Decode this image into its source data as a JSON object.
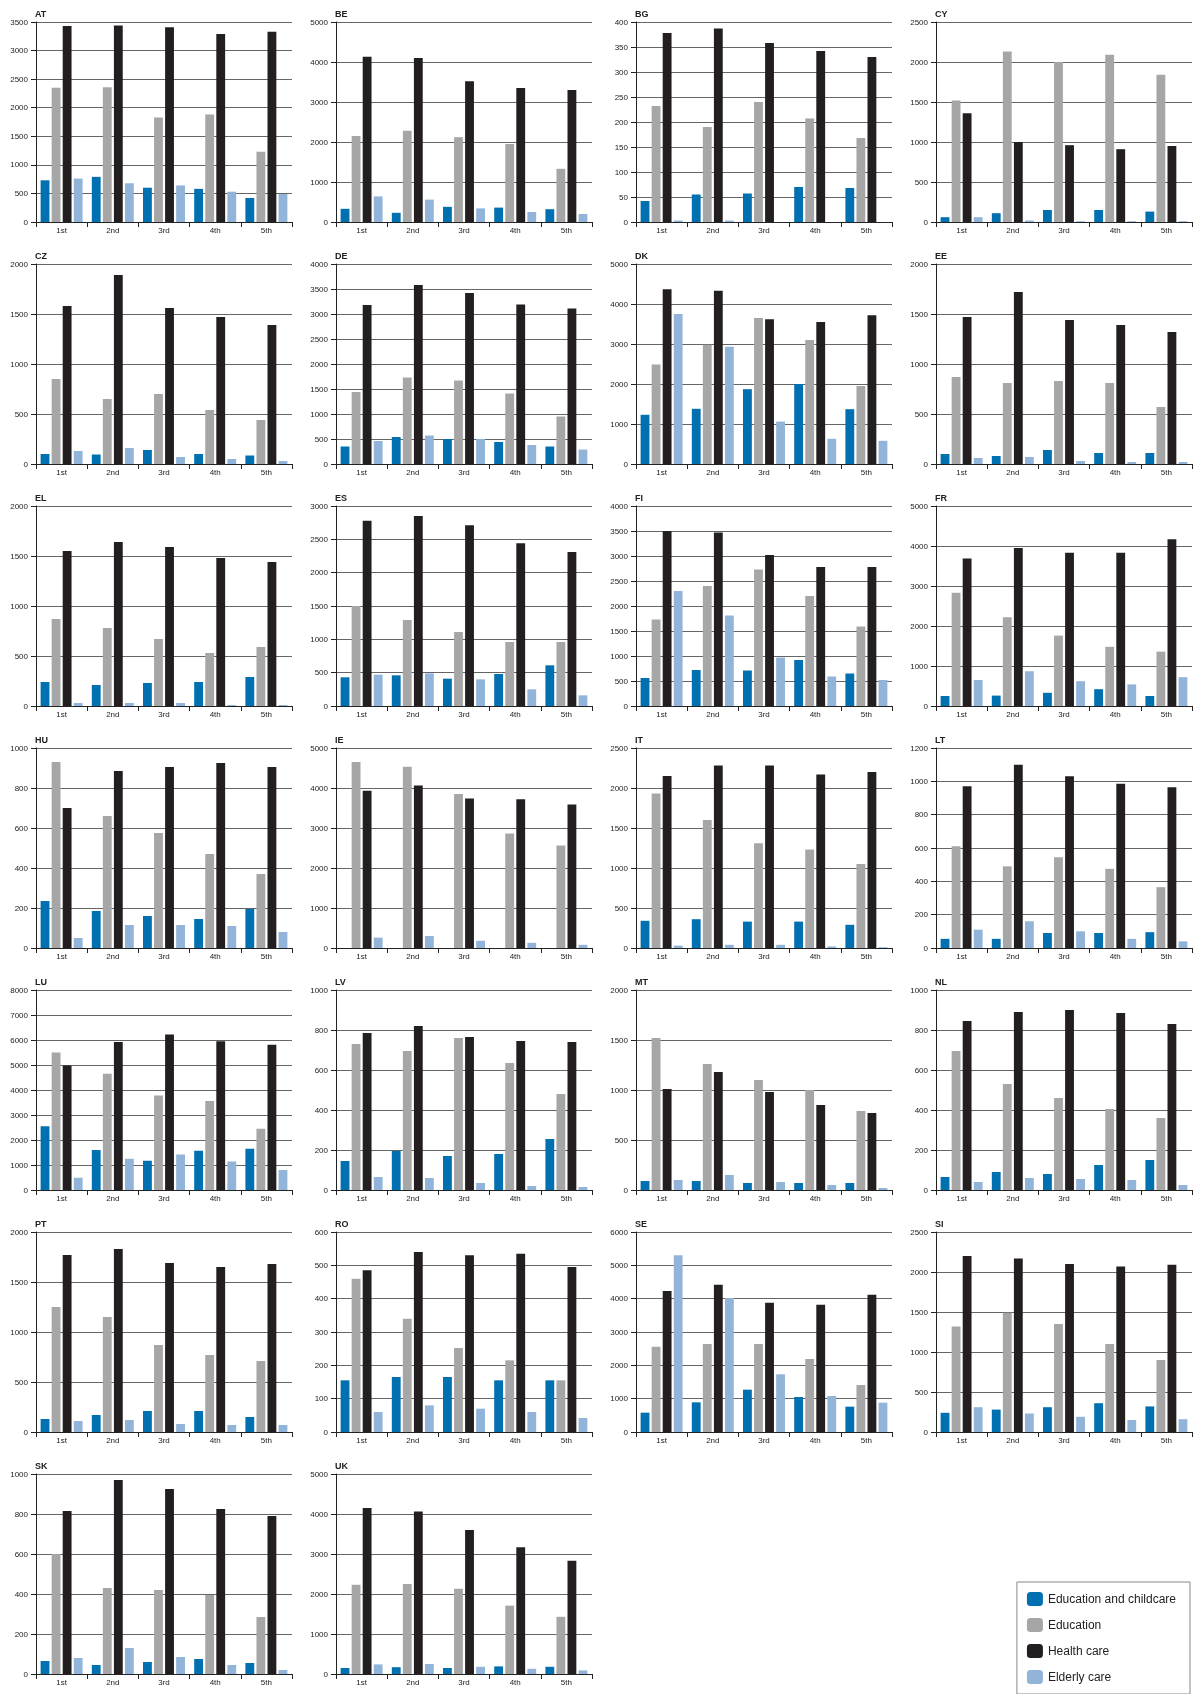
{
  "chart_data": [
    {
      "type": "bar",
      "title": "AT",
      "categories": [
        "1st",
        "2nd",
        "3rd",
        "4th",
        "5th"
      ],
      "ylim": [
        0,
        3500
      ],
      "yticks": [
        0,
        500,
        1000,
        1500,
        2000,
        2500,
        3000,
        3500
      ],
      "grid": "y",
      "series": [
        {
          "color": "#0070b0",
          "values": [
            730,
            790,
            600,
            580,
            420
          ]
        },
        {
          "color": "#a6a6a6",
          "values": [
            2350,
            2360,
            1830,
            1880,
            1230
          ]
        },
        {
          "color": "#231f20",
          "values": [
            3430,
            3440,
            3410,
            3290,
            3330
          ]
        },
        {
          "color": "#92b4d9",
          "values": [
            760,
            680,
            640,
            530,
            490
          ]
        }
      ]
    },
    {
      "type": "bar",
      "title": "BE",
      "categories": [
        "1st",
        "2nd",
        "3rd",
        "4th",
        "5th"
      ],
      "ylim": [
        0,
        5000
      ],
      "yticks": [
        0,
        1000,
        2000,
        3000,
        4000,
        5000
      ],
      "grid": "y",
      "series": [
        {
          "color": "#0070b0",
          "values": [
            330,
            230,
            380,
            360,
            320
          ]
        },
        {
          "color": "#a6a6a6",
          "values": [
            2150,
            2280,
            2120,
            1950,
            1330
          ]
        },
        {
          "color": "#231f20",
          "values": [
            4130,
            4100,
            3520,
            3350,
            3300
          ]
        },
        {
          "color": "#92b4d9",
          "values": [
            640,
            560,
            340,
            250,
            200
          ]
        }
      ]
    },
    {
      "type": "bar",
      "title": "BG",
      "categories": [
        "1st",
        "2nd",
        "3rd",
        "4th",
        "5th"
      ],
      "ylim": [
        0,
        400
      ],
      "yticks": [
        0,
        50,
        100,
        150,
        200,
        250,
        300,
        350,
        400
      ],
      "grid": "y",
      "series": [
        {
          "color": "#0070b0",
          "values": [
            42,
            55,
            57,
            70,
            68
          ]
        },
        {
          "color": "#a6a6a6",
          "values": [
            232,
            190,
            240,
            207,
            168
          ]
        },
        {
          "color": "#231f20",
          "values": [
            378,
            387,
            358,
            342,
            330
          ]
        },
        {
          "color": "#92b4d9",
          "values": [
            3,
            3,
            0,
            0,
            0
          ]
        }
      ]
    },
    {
      "type": "bar",
      "title": "CY",
      "categories": [
        "1st",
        "2nd",
        "3rd",
        "4th",
        "5th"
      ],
      "ylim": [
        0,
        2500
      ],
      "yticks": [
        0,
        500,
        1000,
        1500,
        2000,
        2500
      ],
      "grid": "y",
      "series": [
        {
          "color": "#0070b0",
          "values": [
            60,
            110,
            150,
            150,
            130
          ]
        },
        {
          "color": "#a6a6a6",
          "values": [
            1520,
            2130,
            2000,
            2090,
            1840
          ]
        },
        {
          "color": "#231f20",
          "values": [
            1360,
            1000,
            960,
            910,
            950
          ]
        },
        {
          "color": "#92b4d9",
          "values": [
            60,
            20,
            10,
            10,
            10
          ]
        }
      ]
    },
    {
      "type": "bar",
      "title": "CZ",
      "categories": [
        "1st",
        "2nd",
        "3rd",
        "4th",
        "5th"
      ],
      "ylim": [
        0,
        2000
      ],
      "yticks": [
        0,
        500,
        1000,
        1500,
        2000
      ],
      "grid": "y",
      "series": [
        {
          "color": "#0070b0",
          "values": [
            100,
            95,
            140,
            100,
            85
          ]
        },
        {
          "color": "#a6a6a6",
          "values": [
            850,
            650,
            700,
            540,
            440
          ]
        },
        {
          "color": "#231f20",
          "values": [
            1580,
            1890,
            1560,
            1470,
            1390
          ]
        },
        {
          "color": "#92b4d9",
          "values": [
            130,
            160,
            70,
            50,
            30
          ]
        }
      ]
    },
    {
      "type": "bar",
      "title": "DE",
      "categories": [
        "1st",
        "2nd",
        "3rd",
        "4th",
        "5th"
      ],
      "ylim": [
        0,
        4000
      ],
      "yticks": [
        0,
        500,
        1000,
        1500,
        2000,
        2500,
        3000,
        3500,
        4000
      ],
      "grid": "y",
      "series": [
        {
          "color": "#0070b0",
          "values": [
            350,
            540,
            500,
            440,
            350
          ]
        },
        {
          "color": "#a6a6a6",
          "values": [
            1440,
            1730,
            1670,
            1410,
            950
          ]
        },
        {
          "color": "#231f20",
          "values": [
            3180,
            3580,
            3420,
            3190,
            3110
          ]
        },
        {
          "color": "#92b4d9",
          "values": [
            460,
            570,
            500,
            380,
            290
          ]
        }
      ]
    },
    {
      "type": "bar",
      "title": "DK",
      "categories": [
        "1st",
        "2nd",
        "3rd",
        "4th",
        "5th"
      ],
      "ylim": [
        0,
        5000
      ],
      "yticks": [
        0,
        1000,
        2000,
        3000,
        4000,
        5000
      ],
      "grid": "y",
      "series": [
        {
          "color": "#0070b0",
          "values": [
            1230,
            1380,
            1870,
            2000,
            1370
          ]
        },
        {
          "color": "#a6a6a6",
          "values": [
            2490,
            2980,
            3650,
            3100,
            1950
          ]
        },
        {
          "color": "#231f20",
          "values": [
            4370,
            4330,
            3620,
            3550,
            3720
          ]
        },
        {
          "color": "#92b4d9",
          "values": [
            3750,
            2930,
            1060,
            630,
            580
          ]
        }
      ]
    },
    {
      "type": "bar",
      "title": "EE",
      "categories": [
        "1st",
        "2nd",
        "3rd",
        "4th",
        "5th"
      ],
      "ylim": [
        0,
        2000
      ],
      "yticks": [
        0,
        500,
        1000,
        1500,
        2000
      ],
      "grid": "y",
      "series": [
        {
          "color": "#0070b0",
          "values": [
            100,
            80,
            140,
            110,
            110
          ]
        },
        {
          "color": "#a6a6a6",
          "values": [
            870,
            810,
            830,
            810,
            570
          ]
        },
        {
          "color": "#231f20",
          "values": [
            1470,
            1720,
            1440,
            1390,
            1320
          ]
        },
        {
          "color": "#92b4d9",
          "values": [
            60,
            70,
            30,
            20,
            20
          ]
        }
      ]
    },
    {
      "type": "bar",
      "title": "EL",
      "categories": [
        "1st",
        "2nd",
        "3rd",
        "4th",
        "5th"
      ],
      "ylim": [
        0,
        2000
      ],
      "yticks": [
        0,
        500,
        1000,
        1500,
        2000
      ],
      "grid": "y",
      "series": [
        {
          "color": "#0070b0",
          "values": [
            240,
            210,
            230,
            240,
            290
          ]
        },
        {
          "color": "#a6a6a6",
          "values": [
            870,
            780,
            670,
            530,
            590
          ]
        },
        {
          "color": "#231f20",
          "values": [
            1550,
            1640,
            1590,
            1480,
            1440
          ]
        },
        {
          "color": "#92b4d9",
          "values": [
            30,
            30,
            30,
            10,
            10
          ]
        }
      ]
    },
    {
      "type": "bar",
      "title": "ES",
      "categories": [
        "1st",
        "2nd",
        "3rd",
        "4th",
        "5th"
      ],
      "ylim": [
        0,
        3000
      ],
      "yticks": [
        0,
        500,
        1000,
        1500,
        2000,
        2500,
        3000
      ],
      "grid": "y",
      "series": [
        {
          "color": "#0070b0",
          "values": [
            430,
            460,
            410,
            480,
            610
          ]
        },
        {
          "color": "#a6a6a6",
          "values": [
            1500,
            1290,
            1110,
            960,
            960
          ]
        },
        {
          "color": "#231f20",
          "values": [
            2780,
            2850,
            2710,
            2440,
            2310
          ]
        },
        {
          "color": "#92b4d9",
          "values": [
            470,
            490,
            400,
            250,
            160
          ]
        }
      ]
    },
    {
      "type": "bar",
      "title": "FI",
      "categories": [
        "1st",
        "2nd",
        "3rd",
        "4th",
        "5th"
      ],
      "ylim": [
        0,
        4000
      ],
      "yticks": [
        0,
        500,
        1000,
        1500,
        2000,
        2500,
        3000,
        3500,
        4000
      ],
      "grid": "y",
      "series": [
        {
          "color": "#0070b0",
          "values": [
            560,
            720,
            710,
            920,
            650
          ]
        },
        {
          "color": "#a6a6a6",
          "values": [
            1730,
            2400,
            2730,
            2200,
            1590
          ]
        },
        {
          "color": "#231f20",
          "values": [
            3500,
            3470,
            3020,
            2780,
            2780
          ]
        },
        {
          "color": "#92b4d9",
          "values": [
            2300,
            1810,
            970,
            590,
            520
          ]
        }
      ]
    },
    {
      "type": "bar",
      "title": "FR",
      "categories": [
        "1st",
        "2nd",
        "3rd",
        "4th",
        "5th"
      ],
      "ylim": [
        0,
        5000
      ],
      "yticks": [
        0,
        1000,
        2000,
        3000,
        4000,
        5000
      ],
      "grid": "y",
      "series": [
        {
          "color": "#0070b0",
          "values": [
            250,
            260,
            330,
            420,
            250
          ]
        },
        {
          "color": "#a6a6a6",
          "values": [
            2830,
            2220,
            1760,
            1480,
            1360
          ]
        },
        {
          "color": "#231f20",
          "values": [
            3690,
            3950,
            3830,
            3830,
            4170
          ]
        },
        {
          "color": "#92b4d9",
          "values": [
            650,
            870,
            620,
            540,
            720
          ]
        }
      ]
    },
    {
      "type": "bar",
      "title": "HU",
      "categories": [
        "1st",
        "2nd",
        "3rd",
        "4th",
        "5th"
      ],
      "ylim": [
        0,
        1000
      ],
      "yticks": [
        0,
        200,
        400,
        600,
        800,
        1000
      ],
      "grid": "y",
      "series": [
        {
          "color": "#0070b0",
          "values": [
            235,
            185,
            160,
            145,
            195
          ]
        },
        {
          "color": "#a6a6a6",
          "values": [
            930,
            660,
            575,
            470,
            370
          ]
        },
        {
          "color": "#231f20",
          "values": [
            700,
            885,
            905,
            925,
            905
          ]
        },
        {
          "color": "#92b4d9",
          "values": [
            50,
            115,
            115,
            110,
            80
          ]
        }
      ]
    },
    {
      "type": "bar",
      "title": "IE",
      "categories": [
        "1st",
        "2nd",
        "3rd",
        "4th",
        "5th"
      ],
      "ylim": [
        0,
        5000
      ],
      "yticks": [
        0,
        1000,
        2000,
        3000,
        4000,
        5000
      ],
      "grid": "y",
      "series": [
        {
          "color": "#0070b0",
          "values": [
            0,
            0,
            0,
            0,
            0
          ]
        },
        {
          "color": "#a6a6a6",
          "values": [
            4650,
            4530,
            3850,
            2860,
            2560
          ]
        },
        {
          "color": "#231f20",
          "values": [
            3930,
            4060,
            3740,
            3720,
            3590
          ]
        },
        {
          "color": "#92b4d9",
          "values": [
            260,
            300,
            180,
            130,
            80
          ]
        }
      ]
    },
    {
      "type": "bar",
      "title": "IT",
      "categories": [
        "1st",
        "2nd",
        "3rd",
        "4th",
        "5th"
      ],
      "ylim": [
        0,
        2500
      ],
      "yticks": [
        0,
        500,
        1000,
        1500,
        2000,
        2500
      ],
      "grid": "y",
      "series": [
        {
          "color": "#0070b0",
          "values": [
            340,
            360,
            330,
            330,
            290
          ]
        },
        {
          "color": "#a6a6a6",
          "values": [
            1930,
            1600,
            1310,
            1230,
            1050
          ]
        },
        {
          "color": "#231f20",
          "values": [
            2150,
            2280,
            2280,
            2170,
            2200
          ]
        },
        {
          "color": "#92b4d9",
          "values": [
            30,
            40,
            40,
            20,
            10
          ]
        }
      ]
    },
    {
      "type": "bar",
      "title": "LT",
      "categories": [
        "1st",
        "2nd",
        "3rd",
        "4th",
        "5th"
      ],
      "ylim": [
        0,
        1200
      ],
      "yticks": [
        0,
        200,
        400,
        600,
        800,
        1000,
        1200
      ],
      "grid": "y",
      "series": [
        {
          "color": "#0070b0",
          "values": [
            55,
            55,
            90,
            90,
            95
          ]
        },
        {
          "color": "#a6a6a6",
          "values": [
            610,
            490,
            545,
            475,
            365
          ]
        },
        {
          "color": "#231f20",
          "values": [
            970,
            1100,
            1030,
            985,
            965
          ]
        },
        {
          "color": "#92b4d9",
          "values": [
            110,
            160,
            100,
            55,
            40
          ]
        }
      ]
    },
    {
      "type": "bar",
      "title": "LU",
      "categories": [
        "1st",
        "2nd",
        "3rd",
        "4th",
        "5th"
      ],
      "ylim": [
        0,
        8000
      ],
      "yticks": [
        0,
        1000,
        2000,
        3000,
        4000,
        5000,
        6000,
        7000,
        8000
      ],
      "grid": "y",
      "series": [
        {
          "color": "#0070b0",
          "values": [
            2550,
            1600,
            1170,
            1570,
            1650
          ]
        },
        {
          "color": "#a6a6a6",
          "values": [
            5500,
            4650,
            3780,
            3560,
            2450
          ]
        },
        {
          "color": "#231f20",
          "values": [
            4980,
            5920,
            6220,
            5950,
            5810
          ]
        },
        {
          "color": "#92b4d9",
          "values": [
            490,
            1250,
            1420,
            1140,
            800
          ]
        }
      ]
    },
    {
      "type": "bar",
      "title": "LV",
      "categories": [
        "1st",
        "2nd",
        "3rd",
        "4th",
        "5th"
      ],
      "ylim": [
        0,
        1000
      ],
      "yticks": [
        0,
        200,
        400,
        600,
        800,
        1000
      ],
      "grid": "y",
      "series": [
        {
          "color": "#0070b0",
          "values": [
            145,
            195,
            170,
            180,
            255
          ]
        },
        {
          "color": "#a6a6a6",
          "values": [
            730,
            695,
            760,
            635,
            480
          ]
        },
        {
          "color": "#231f20",
          "values": [
            785,
            820,
            765,
            745,
            740
          ]
        },
        {
          "color": "#92b4d9",
          "values": [
            65,
            60,
            35,
            20,
            15
          ]
        }
      ]
    },
    {
      "type": "bar",
      "title": "MT",
      "categories": [
        "1st",
        "2nd",
        "3rd",
        "4th",
        "5th"
      ],
      "ylim": [
        0,
        2000
      ],
      "yticks": [
        0,
        500,
        1000,
        1500,
        2000
      ],
      "grid": "y",
      "series": [
        {
          "color": "#0070b0",
          "values": [
            90,
            90,
            70,
            70,
            70
          ]
        },
        {
          "color": "#a6a6a6",
          "values": [
            1520,
            1260,
            1100,
            1000,
            790
          ]
        },
        {
          "color": "#231f20",
          "values": [
            1010,
            1180,
            980,
            850,
            770
          ]
        },
        {
          "color": "#92b4d9",
          "values": [
            100,
            150,
            80,
            50,
            20
          ]
        }
      ]
    },
    {
      "type": "bar",
      "title": "NL",
      "categories": [
        "1st",
        "2nd",
        "3rd",
        "4th",
        "5th"
      ],
      "ylim": [
        0,
        1000
      ],
      "yticks": [
        0,
        200,
        400,
        600,
        800,
        1000
      ],
      "grid": "y",
      "series": [
        {
          "color": "#0070b0",
          "values": [
            65,
            90,
            80,
            125,
            150
          ]
        },
        {
          "color": "#a6a6a6",
          "values": [
            695,
            530,
            460,
            405,
            360
          ]
        },
        {
          "color": "#231f20",
          "values": [
            845,
            890,
            900,
            885,
            830
          ]
        },
        {
          "color": "#92b4d9",
          "values": [
            40,
            60,
            55,
            50,
            25
          ]
        }
      ]
    },
    {
      "type": "bar",
      "title": "PT",
      "categories": [
        "1st",
        "2nd",
        "3rd",
        "4th",
        "5th"
      ],
      "ylim": [
        0,
        2000
      ],
      "yticks": [
        0,
        500,
        1000,
        1500,
        2000
      ],
      "grid": "y",
      "series": [
        {
          "color": "#0070b0",
          "values": [
            130,
            170,
            210,
            210,
            150
          ]
        },
        {
          "color": "#a6a6a6",
          "values": [
            1250,
            1150,
            870,
            770,
            710
          ]
        },
        {
          "color": "#231f20",
          "values": [
            1770,
            1830,
            1690,
            1650,
            1680
          ]
        },
        {
          "color": "#92b4d9",
          "values": [
            110,
            120,
            80,
            70,
            70
          ]
        }
      ]
    },
    {
      "type": "bar",
      "title": "RO",
      "categories": [
        "1st",
        "2nd",
        "3rd",
        "4th",
        "5th"
      ],
      "ylim": [
        0,
        600
      ],
      "yticks": [
        0,
        100,
        200,
        300,
        400,
        500,
        600
      ],
      "grid": "y",
      "series": [
        {
          "color": "#0070b0",
          "values": [
            155,
            165,
            165,
            155,
            155
          ]
        },
        {
          "color": "#a6a6a6",
          "values": [
            460,
            340,
            252,
            215,
            155
          ]
        },
        {
          "color": "#231f20",
          "values": [
            485,
            540,
            530,
            535,
            495
          ]
        },
        {
          "color": "#92b4d9",
          "values": [
            60,
            80,
            70,
            60,
            42
          ]
        }
      ]
    },
    {
      "type": "bar",
      "title": "SE",
      "categories": [
        "1st",
        "2nd",
        "3rd",
        "4th",
        "5th"
      ],
      "ylim": [
        0,
        6000
      ],
      "yticks": [
        0,
        1000,
        2000,
        3000,
        4000,
        5000,
        6000
      ],
      "grid": "y",
      "series": [
        {
          "color": "#0070b0",
          "values": [
            580,
            890,
            1270,
            1050,
            760
          ]
        },
        {
          "color": "#a6a6a6",
          "values": [
            2560,
            2640,
            2640,
            2190,
            1410
          ]
        },
        {
          "color": "#231f20",
          "values": [
            4230,
            4420,
            3880,
            3820,
            4120
          ]
        },
        {
          "color": "#92b4d9",
          "values": [
            5300,
            4020,
            1730,
            1080,
            880
          ]
        }
      ]
    },
    {
      "type": "bar",
      "title": "SI",
      "categories": [
        "1st",
        "2nd",
        "3rd",
        "4th",
        "5th"
      ],
      "ylim": [
        0,
        2500
      ],
      "yticks": [
        0,
        500,
        1000,
        1500,
        2000,
        2500
      ],
      "grid": "y",
      "series": [
        {
          "color": "#0070b0",
          "values": [
            240,
            280,
            310,
            360,
            320
          ]
        },
        {
          "color": "#a6a6a6",
          "values": [
            1320,
            1490,
            1350,
            1100,
            900
          ]
        },
        {
          "color": "#231f20",
          "values": [
            2200,
            2170,
            2100,
            2070,
            2090
          ]
        },
        {
          "color": "#92b4d9",
          "values": [
            310,
            230,
            190,
            150,
            160
          ]
        }
      ]
    },
    {
      "type": "bar",
      "title": "SK",
      "categories": [
        "1st",
        "2nd",
        "3rd",
        "4th",
        "5th"
      ],
      "ylim": [
        0,
        1000
      ],
      "yticks": [
        0,
        200,
        400,
        600,
        800,
        1000
      ],
      "grid": "y",
      "series": [
        {
          "color": "#0070b0",
          "values": [
            65,
            45,
            60,
            75,
            55
          ]
        },
        {
          "color": "#a6a6a6",
          "values": [
            600,
            430,
            420,
            395,
            285
          ]
        },
        {
          "color": "#231f20",
          "values": [
            815,
            970,
            925,
            825,
            790
          ]
        },
        {
          "color": "#92b4d9",
          "values": [
            80,
            130,
            85,
            45,
            20
          ]
        }
      ]
    },
    {
      "type": "bar",
      "title": "UK",
      "categories": [
        "1st",
        "2nd",
        "3rd",
        "4th",
        "5th"
      ],
      "ylim": [
        0,
        5000
      ],
      "yticks": [
        0,
        1000,
        2000,
        3000,
        4000,
        5000
      ],
      "grid": "y",
      "legend": "bottom right",
      "series": [
        {
          "name": "Education and childcare",
          "color": "#0070b0",
          "values": [
            150,
            170,
            150,
            190,
            180
          ]
        },
        {
          "name": "Education",
          "color": "#a6a6a6",
          "values": [
            2230,
            2250,
            2130,
            1710,
            1430
          ]
        },
        {
          "name": "Health care",
          "color": "#231f20",
          "values": [
            4150,
            4060,
            3600,
            3170,
            2830
          ]
        },
        {
          "name": "Elderly care",
          "color": "#92b4d9",
          "values": [
            240,
            250,
            180,
            130,
            90
          ]
        }
      ]
    }
  ]
}
